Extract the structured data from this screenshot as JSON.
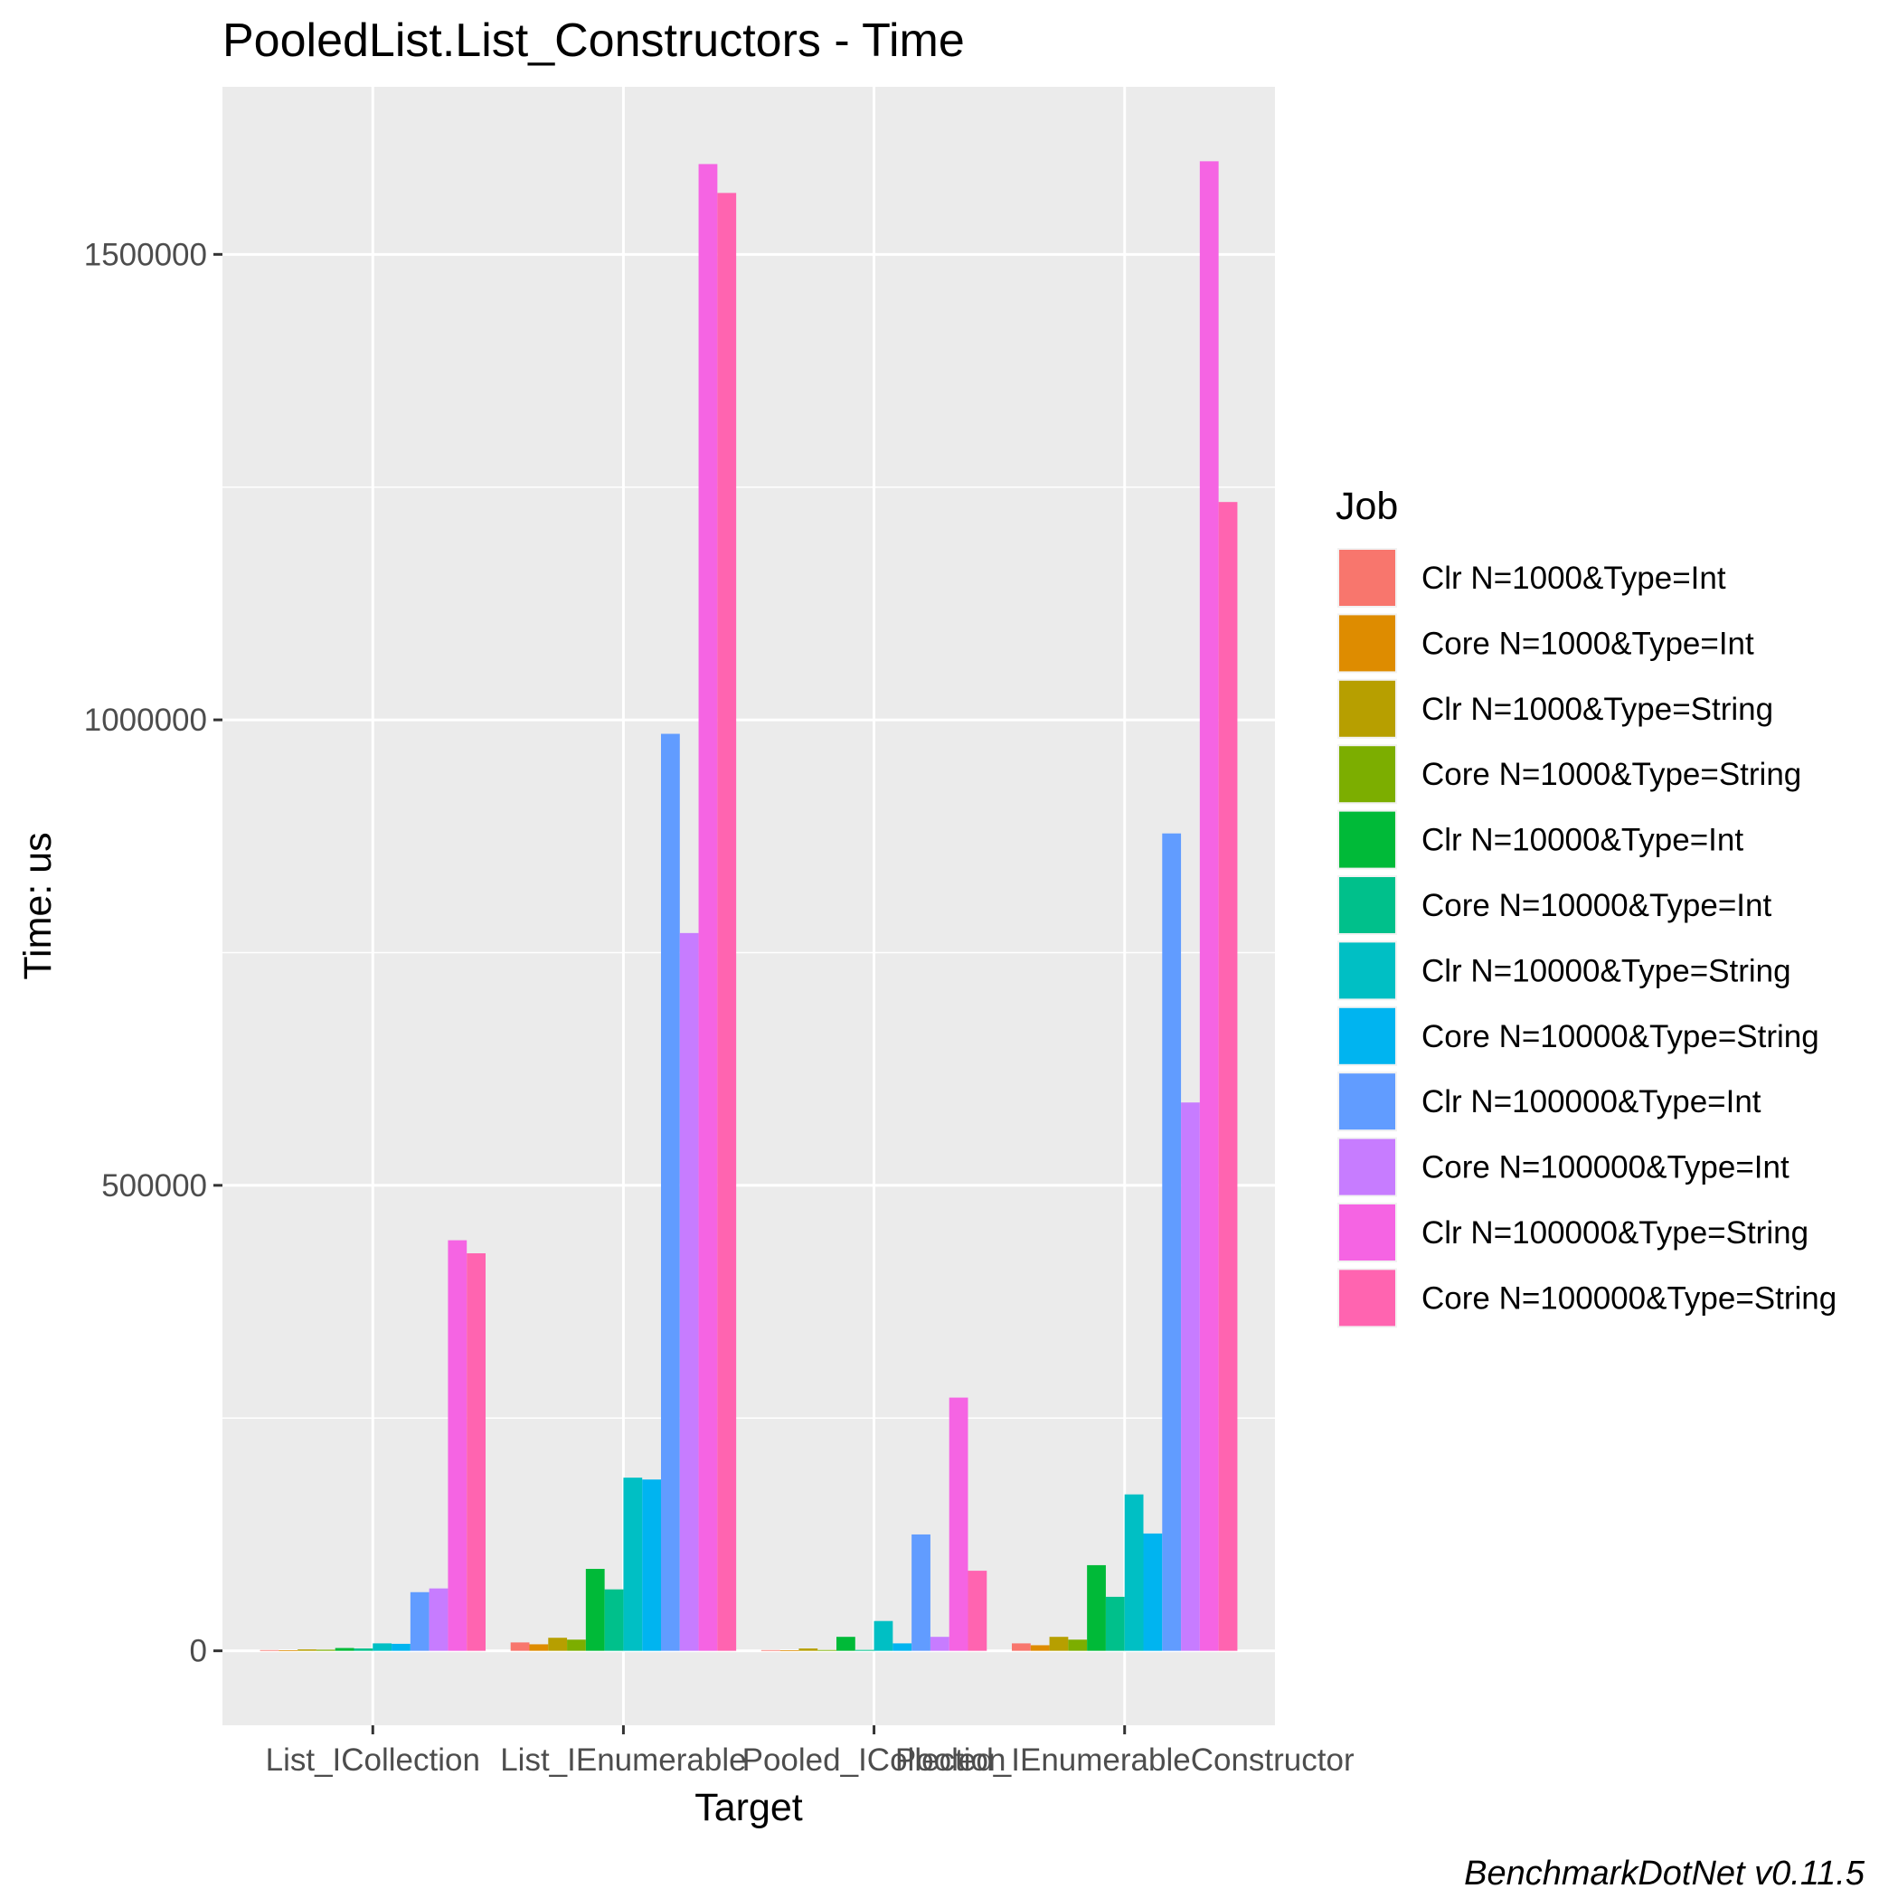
{
  "chart_data": {
    "type": "bar",
    "title": "PooledList.List_Constructors - Time",
    "xlabel": "Target",
    "ylabel": "Time: us",
    "caption": "BenchmarkDotNet v0.11.5",
    "ylim": [
      -80000,
      1680000
    ],
    "yticks": [
      0,
      500000,
      1000000,
      1500000
    ],
    "ytick_labels": [
      "0",
      "500000",
      "1000000",
      "1500000"
    ],
    "grid": true,
    "legend": {
      "title": "Job",
      "position": "right"
    },
    "categories": [
      "List_ICollection",
      "List_IEnumerable",
      "Pooled_ICollection",
      "Pooled_IEnumerableConstructor"
    ],
    "series": [
      {
        "name": "Clr N=1000&Type=Int",
        "color": "#F8766D",
        "values": [
          800,
          9000,
          800,
          8000
        ]
      },
      {
        "name": "Core N=1000&Type=Int",
        "color": "#DE8C00",
        "values": [
          600,
          7000,
          600,
          6000
        ]
      },
      {
        "name": "Clr N=1000&Type=String",
        "color": "#B79F00",
        "values": [
          1500,
          14000,
          2500,
          15000
        ]
      },
      {
        "name": "Core N=1000&Type=String",
        "color": "#7CAE00",
        "values": [
          1200,
          12000,
          900,
          12000
        ]
      },
      {
        "name": "Clr N=10000&Type=Int",
        "color": "#00BA38",
        "values": [
          3000,
          88000,
          15000,
          92000
        ]
      },
      {
        "name": "Core N=10000&Type=Int",
        "color": "#00C08B",
        "values": [
          2500,
          66000,
          1000,
          58000
        ]
      },
      {
        "name": "Clr N=10000&Type=String",
        "color": "#00BFC4",
        "values": [
          8000,
          186000,
          32000,
          168000
        ]
      },
      {
        "name": "Core N=10000&Type=String",
        "color": "#00B4F0",
        "values": [
          7500,
          184000,
          8000,
          126000
        ]
      },
      {
        "name": "Clr N=100000&Type=Int",
        "color": "#619CFF",
        "values": [
          63000,
          985000,
          125000,
          878000
        ]
      },
      {
        "name": "Core N=100000&Type=Int",
        "color": "#C77CFF",
        "values": [
          67000,
          771000,
          15000,
          589000
        ]
      },
      {
        "name": "Clr N=100000&Type=String",
        "color": "#F564E3",
        "values": [
          441000,
          1597000,
          272000,
          1600000
        ]
      },
      {
        "name": "Core N=100000&Type=String",
        "color": "#FF64B0",
        "values": [
          427000,
          1566000,
          86000,
          1234000
        ]
      }
    ]
  }
}
